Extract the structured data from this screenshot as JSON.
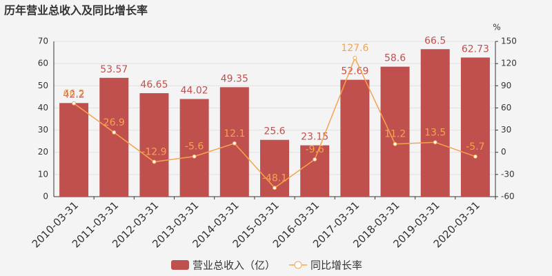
{
  "chart_data": {
    "type": "bar",
    "title": "历年营业总收入及同比增长率",
    "y2_label": "%",
    "categories": [
      "2010-03-31",
      "2011-03-31",
      "2012-03-31",
      "2013-03-31",
      "2014-03-31",
      "2015-03-31",
      "2016-03-31",
      "2017-03-31",
      "2018-03-31",
      "2019-03-31",
      "2020-03-31"
    ],
    "series": [
      {
        "name": "营业总收入（亿）",
        "type": "bar",
        "color": "#c0504d",
        "axis": "y",
        "values": [
          42.2,
          53.57,
          46.65,
          44.02,
          49.35,
          25.6,
          23.15,
          52.69,
          58.6,
          66.5,
          62.73
        ]
      },
      {
        "name": "同比增长率",
        "type": "line",
        "color": "#f4a44f",
        "axis": "y2",
        "values": [
          66.2,
          26.9,
          -12.9,
          -5.6,
          12.1,
          -48.1,
          -9.6,
          127.6,
          11.2,
          13.5,
          -5.7
        ]
      }
    ],
    "ylim": [
      0,
      70
    ],
    "yticks": [
      0,
      10,
      20,
      30,
      40,
      50,
      60,
      70
    ],
    "y2lim": [
      -60,
      150
    ],
    "y2ticks": [
      -60,
      -30,
      0,
      30,
      60,
      90,
      120,
      150
    ],
    "grid": true
  }
}
